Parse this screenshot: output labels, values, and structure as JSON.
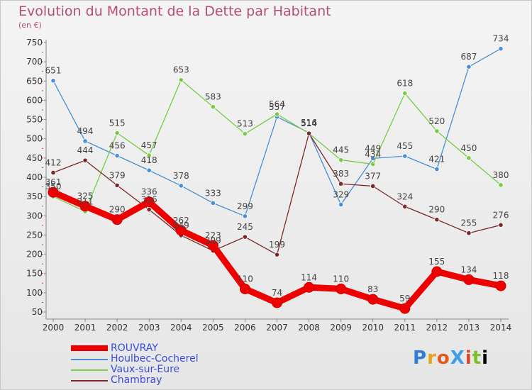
{
  "title": "Evolution du Montant de la Dette par Habitant",
  "subtitle": "(en €)",
  "logo_text": "ProXiti",
  "chart_data": {
    "type": "line",
    "x": [
      2000,
      2001,
      2002,
      2003,
      2004,
      2005,
      2006,
      2007,
      2008,
      2009,
      2010,
      2011,
      2012,
      2013,
      2014
    ],
    "ylim": [
      50,
      750
    ],
    "yticks": [
      50,
      100,
      150,
      200,
      250,
      300,
      350,
      400,
      450,
      500,
      550,
      600,
      650,
      700,
      750
    ],
    "grid": false,
    "legend_position": "bottom-left",
    "series": [
      {
        "name": "ROUVRAY",
        "color": "#ee0000",
        "values": [
          361,
          325,
          290,
          336,
          262,
          223,
          110,
          74,
          114,
          110,
          83,
          59,
          155,
          134,
          118
        ]
      },
      {
        "name": "Houlbec-Cocherel",
        "color": "#4a8fd4",
        "values": [
          651,
          494,
          456,
          418,
          378,
          333,
          299,
          557,
          516,
          329,
          449,
          455,
          421,
          687,
          734
        ]
      },
      {
        "name": "Vaux-sur-Eure",
        "color": "#77cc44",
        "values": [
          350,
          311,
          515,
          457,
          653,
          583,
          513,
          564,
          514,
          445,
          434,
          618,
          520,
          450,
          380
        ]
      },
      {
        "name": "Chambray",
        "color": "#7a2828",
        "values": [
          412,
          444,
          379,
          316,
          249,
          209,
          245,
          199,
          514,
          383,
          377,
          324,
          290,
          255,
          276
        ]
      }
    ]
  }
}
